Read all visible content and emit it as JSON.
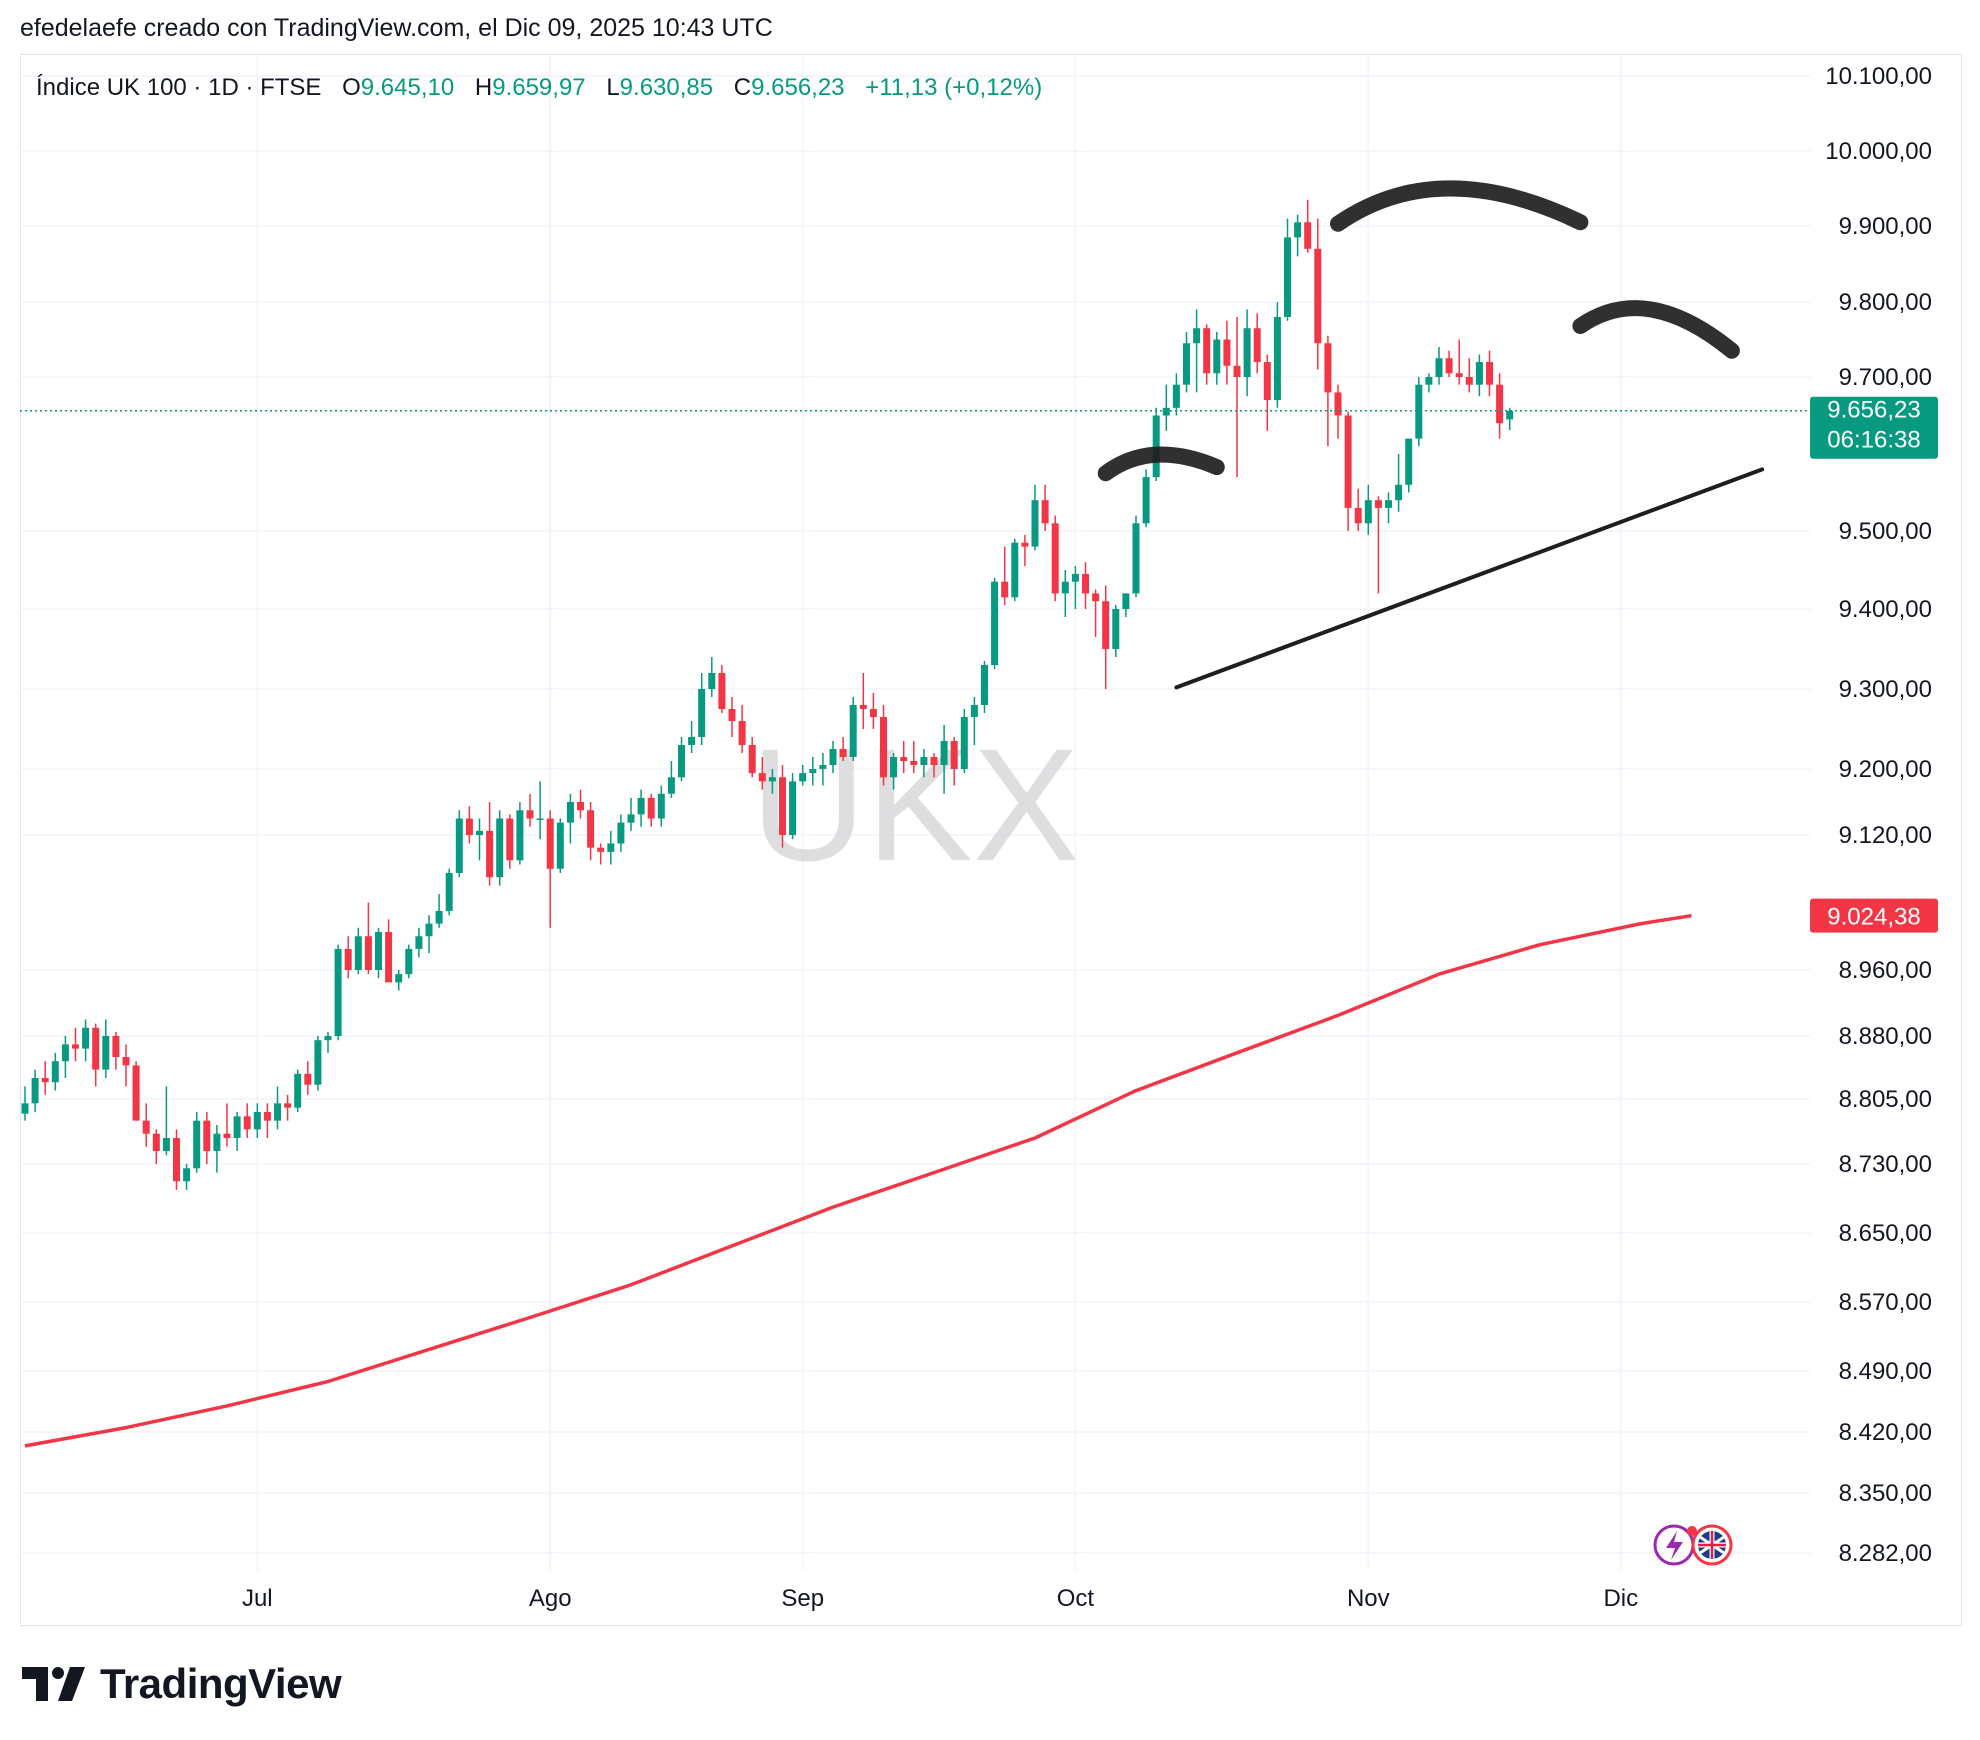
{
  "header": {
    "attribution": "efedelaefe creado con TradingView.com, el Dic 09, 2025 10:43 UTC"
  },
  "legend": {
    "symbol": "Índice UK 100 · 1D · FTSE",
    "open_label": "O",
    "open": "9.645,10",
    "high_label": "H",
    "high": "9.659,97",
    "low_label": "L",
    "low": "9.630,85",
    "close_label": "C",
    "close": "9.656,23",
    "change": "+11,13 (+0,12%)"
  },
  "watermark": "UKX",
  "price_badge": {
    "price": "9.656,23",
    "countdown": "06:16:38",
    "color": "#089981"
  },
  "ma_badge": {
    "value": "9.024,38",
    "color": "#f23645"
  },
  "brand": {
    "name": "TradingView"
  },
  "colors": {
    "up": "#089981",
    "down": "#f23645",
    "ma": "#f23645",
    "drawing": "#1e1e1e",
    "grid": "#f0f3fa"
  },
  "chart_data": {
    "type": "candlestick",
    "y_ticks": [
      {
        "value": 10100,
        "label": "10.100,00"
      },
      {
        "value": 10000,
        "label": "10.000,00"
      },
      {
        "value": 9900,
        "label": "9.900,00"
      },
      {
        "value": 9800,
        "label": "9.800,00"
      },
      {
        "value": 9700,
        "label": "9.700,00"
      },
      {
        "value": 9500,
        "label": "9.500,00"
      },
      {
        "value": 9400,
        "label": "9.400,00"
      },
      {
        "value": 9300,
        "label": "9.300,00"
      },
      {
        "value": 9200,
        "label": "9.200,00"
      },
      {
        "value": 9120,
        "label": "9.120,00"
      },
      {
        "value": 8960,
        "label": "8.960,00"
      },
      {
        "value": 8880,
        "label": "8.880,00"
      },
      {
        "value": 8805,
        "label": "8.805,00"
      },
      {
        "value": 8730,
        "label": "8.730,00"
      },
      {
        "value": 8650,
        "label": "8.650,00"
      },
      {
        "value": 8570,
        "label": "8.570,00"
      },
      {
        "value": 8490,
        "label": "8.490,00"
      },
      {
        "value": 8420,
        "label": "8.420,00"
      },
      {
        "value": 8350,
        "label": "8.350,00"
      },
      {
        "value": 8282,
        "label": "8.282,00"
      }
    ],
    "x_ticks": [
      {
        "label": "Jul",
        "bar": 23
      },
      {
        "label": "Ago",
        "bar": 52
      },
      {
        "label": "Sep",
        "bar": 77
      },
      {
        "label": "Oct",
        "bar": 104
      },
      {
        "label": "Nov",
        "bar": 133
      },
      {
        "label": "Dic",
        "bar": 158
      }
    ],
    "candles": [
      [
        8788,
        8820,
        8780,
        8800
      ],
      [
        8800,
        8840,
        8790,
        8830
      ],
      [
        8830,
        8850,
        8810,
        8825
      ],
      [
        8825,
        8860,
        8815,
        8850
      ],
      [
        8850,
        8880,
        8830,
        8870
      ],
      [
        8870,
        8890,
        8850,
        8865
      ],
      [
        8865,
        8900,
        8850,
        8890
      ],
      [
        8890,
        8895,
        8820,
        8840
      ],
      [
        8840,
        8900,
        8830,
        8880
      ],
      [
        8880,
        8885,
        8840,
        8855
      ],
      [
        8855,
        8870,
        8820,
        8845
      ],
      [
        8845,
        8850,
        8790,
        8780
      ],
      [
        8780,
        8800,
        8750,
        8765
      ],
      [
        8765,
        8770,
        8730,
        8745
      ],
      [
        8745,
        8820,
        8740,
        8760
      ],
      [
        8760,
        8770,
        8700,
        8710
      ],
      [
        8710,
        8730,
        8700,
        8725
      ],
      [
        8725,
        8790,
        8720,
        8780
      ],
      [
        8780,
        8790,
        8730,
        8745
      ],
      [
        8745,
        8775,
        8720,
        8765
      ],
      [
        8765,
        8800,
        8750,
        8760
      ],
      [
        8760,
        8790,
        8745,
        8785
      ],
      [
        8785,
        8800,
        8760,
        8770
      ],
      [
        8770,
        8800,
        8760,
        8790
      ],
      [
        8790,
        8800,
        8760,
        8780
      ],
      [
        8780,
        8820,
        8770,
        8800
      ],
      [
        8800,
        8810,
        8780,
        8795
      ],
      [
        8795,
        8840,
        8790,
        8835
      ],
      [
        8835,
        8850,
        8810,
        8822
      ],
      [
        8822,
        8880,
        8815,
        8875
      ],
      [
        8875,
        8885,
        8860,
        8880
      ],
      [
        8880,
        8990,
        8875,
        8985
      ],
      [
        8985,
        9000,
        8950,
        8960
      ],
      [
        8960,
        9010,
        8955,
        9000
      ],
      [
        9000,
        9040,
        8955,
        8960
      ],
      [
        8960,
        9010,
        8950,
        9005
      ],
      [
        9005,
        9020,
        8950,
        8945
      ],
      [
        8945,
        8960,
        8935,
        8955
      ],
      [
        8955,
        8990,
        8950,
        8985
      ],
      [
        8985,
        9010,
        8975,
        9000
      ],
      [
        9000,
        9025,
        8980,
        9015
      ],
      [
        9015,
        9050,
        9010,
        9030
      ],
      [
        9030,
        9080,
        9025,
        9075
      ],
      [
        9075,
        9150,
        9070,
        9140
      ],
      [
        9140,
        9155,
        9110,
        9120
      ],
      [
        9120,
        9140,
        9090,
        9125
      ],
      [
        9125,
        9160,
        9060,
        9070
      ],
      [
        9070,
        9150,
        9060,
        9140
      ],
      [
        9140,
        9145,
        9080,
        9090
      ],
      [
        9090,
        9160,
        9085,
        9150
      ],
      [
        9150,
        9170,
        9130,
        9140
      ],
      [
        9140,
        9185,
        9115,
        9140
      ],
      [
        9140,
        9150,
        9010,
        9080
      ],
      [
        9080,
        9140,
        9075,
        9135
      ],
      [
        9135,
        9170,
        9110,
        9160
      ],
      [
        9160,
        9175,
        9140,
        9150
      ],
      [
        9150,
        9160,
        9090,
        9105
      ],
      [
        9105,
        9110,
        9085,
        9100
      ],
      [
        9100,
        9125,
        9085,
        9110
      ],
      [
        9110,
        9145,
        9100,
        9135
      ],
      [
        9135,
        9165,
        9125,
        9145
      ],
      [
        9145,
        9175,
        9130,
        9165
      ],
      [
        9165,
        9170,
        9130,
        9140
      ],
      [
        9140,
        9180,
        9130,
        9170
      ],
      [
        9170,
        9210,
        9165,
        9190
      ],
      [
        9190,
        9240,
        9185,
        9230
      ],
      [
        9230,
        9260,
        9220,
        9240
      ],
      [
        9240,
        9320,
        9230,
        9300
      ],
      [
        9300,
        9340,
        9290,
        9320
      ],
      [
        9320,
        9330,
        9270,
        9275
      ],
      [
        9275,
        9290,
        9240,
        9260
      ],
      [
        9260,
        9280,
        9220,
        9230
      ],
      [
        9230,
        9240,
        9190,
        9195
      ],
      [
        9195,
        9215,
        9175,
        9185
      ],
      [
        9185,
        9200,
        9170,
        9190
      ],
      [
        9190,
        9205,
        9105,
        9120
      ],
      [
        9120,
        9195,
        9115,
        9185
      ],
      [
        9185,
        9205,
        9180,
        9195
      ],
      [
        9195,
        9215,
        9180,
        9200
      ],
      [
        9200,
        9220,
        9180,
        9205
      ],
      [
        9205,
        9235,
        9195,
        9225
      ],
      [
        9225,
        9240,
        9210,
        9215
      ],
      [
        9215,
        9290,
        9210,
        9280
      ],
      [
        9280,
        9320,
        9250,
        9275
      ],
      [
        9275,
        9295,
        9250,
        9265
      ],
      [
        9265,
        9280,
        9180,
        9190
      ],
      [
        9190,
        9220,
        9175,
        9215
      ],
      [
        9215,
        9235,
        9195,
        9210
      ],
      [
        9210,
        9235,
        9195,
        9205
      ],
      [
        9205,
        9225,
        9190,
        9215
      ],
      [
        9215,
        9220,
        9190,
        9205
      ],
      [
        9205,
        9255,
        9170,
        9235
      ],
      [
        9235,
        9240,
        9180,
        9200
      ],
      [
        9200,
        9275,
        9195,
        9265
      ],
      [
        9265,
        9290,
        9230,
        9280
      ],
      [
        9280,
        9335,
        9270,
        9330
      ],
      [
        9330,
        9440,
        9325,
        9435
      ],
      [
        9435,
        9480,
        9405,
        9415
      ],
      [
        9415,
        9490,
        9410,
        9485
      ],
      [
        9485,
        9495,
        9455,
        9480
      ],
      [
        9480,
        9560,
        9475,
        9540
      ],
      [
        9540,
        9560,
        9500,
        9510
      ],
      [
        9510,
        9520,
        9410,
        9420
      ],
      [
        9420,
        9450,
        9390,
        9435
      ],
      [
        9435,
        9455,
        9400,
        9445
      ],
      [
        9445,
        9460,
        9400,
        9420
      ],
      [
        9420,
        9425,
        9365,
        9410
      ],
      [
        9410,
        9430,
        9300,
        9350
      ],
      [
        9350,
        9405,
        9340,
        9400
      ],
      [
        9400,
        9420,
        9390,
        9420
      ],
      [
        9420,
        9520,
        9415,
        9510
      ],
      [
        9510,
        9580,
        9505,
        9570
      ],
      [
        9570,
        9660,
        9565,
        9650
      ],
      [
        9650,
        9690,
        9630,
        9660
      ],
      [
        9660,
        9705,
        9650,
        9690
      ],
      [
        9690,
        9760,
        9680,
        9745
      ],
      [
        9745,
        9790,
        9680,
        9765
      ],
      [
        9765,
        9770,
        9690,
        9705
      ],
      [
        9705,
        9760,
        9690,
        9750
      ],
      [
        9750,
        9775,
        9690,
        9715
      ],
      [
        9715,
        9780,
        9570,
        9700
      ],
      [
        9700,
        9790,
        9675,
        9765
      ],
      [
        9765,
        9785,
        9705,
        9720
      ],
      [
        9720,
        9730,
        9630,
        9670
      ],
      [
        9670,
        9800,
        9660,
        9780
      ],
      [
        9780,
        9910,
        9775,
        9885
      ],
      [
        9885,
        9915,
        9860,
        9905
      ],
      [
        9905,
        9935,
        9865,
        9870
      ],
      [
        9870,
        9910,
        9710,
        9745
      ],
      [
        9745,
        9755,
        9610,
        9680
      ],
      [
        9680,
        9690,
        9620,
        9650
      ],
      [
        9650,
        9655,
        9500,
        9530
      ],
      [
        9530,
        9555,
        9500,
        9510
      ],
      [
        9510,
        9560,
        9495,
        9540
      ],
      [
        9540,
        9545,
        9420,
        9530
      ],
      [
        9530,
        9550,
        9510,
        9540
      ],
      [
        9540,
        9600,
        9525,
        9560
      ],
      [
        9560,
        9620,
        9550,
        9620
      ],
      [
        9620,
        9700,
        9610,
        9690
      ],
      [
        9690,
        9705,
        9680,
        9700
      ],
      [
        9700,
        9740,
        9690,
        9725
      ],
      [
        9725,
        9735,
        9700,
        9705
      ],
      [
        9705,
        9750,
        9690,
        9700
      ],
      [
        9700,
        9725,
        9680,
        9690
      ],
      [
        9690,
        9730,
        9675,
        9720
      ],
      [
        9720,
        9735,
        9675,
        9690
      ],
      [
        9690,
        9705,
        9620,
        9640
      ],
      [
        9645,
        9660,
        9631,
        9656
      ]
    ],
    "moving_average": {
      "period_label": "",
      "points": [
        [
          0,
          8404
        ],
        [
          10,
          8425
        ],
        [
          20,
          8450
        ],
        [
          30,
          8478
        ],
        [
          40,
          8515
        ],
        [
          50,
          8552
        ],
        [
          60,
          8590
        ],
        [
          70,
          8635
        ],
        [
          80,
          8680
        ],
        [
          90,
          8720
        ],
        [
          100,
          8760
        ],
        [
          110,
          8815
        ],
        [
          120,
          8860
        ],
        [
          130,
          8905
        ],
        [
          140,
          8955
        ],
        [
          150,
          8990
        ],
        [
          160,
          9015
        ],
        [
          165,
          9024.38
        ]
      ]
    },
    "trendline": {
      "from": [
        114,
        9302
      ],
      "to": [
        172,
        9580
      ]
    },
    "arcs": [
      {
        "from": [
          107,
          9575
        ],
        "peak": [
          112,
          9599
        ],
        "to": [
          118,
          9583
        ]
      },
      {
        "from": [
          130,
          9903
        ],
        "peak": [
          141,
          9950
        ],
        "to": [
          154,
          9905
        ]
      },
      {
        "from": [
          154,
          9768
        ],
        "peak": [
          161,
          9790
        ],
        "to": [
          169,
          9735
        ]
      }
    ],
    "current_price": 9656.23
  }
}
